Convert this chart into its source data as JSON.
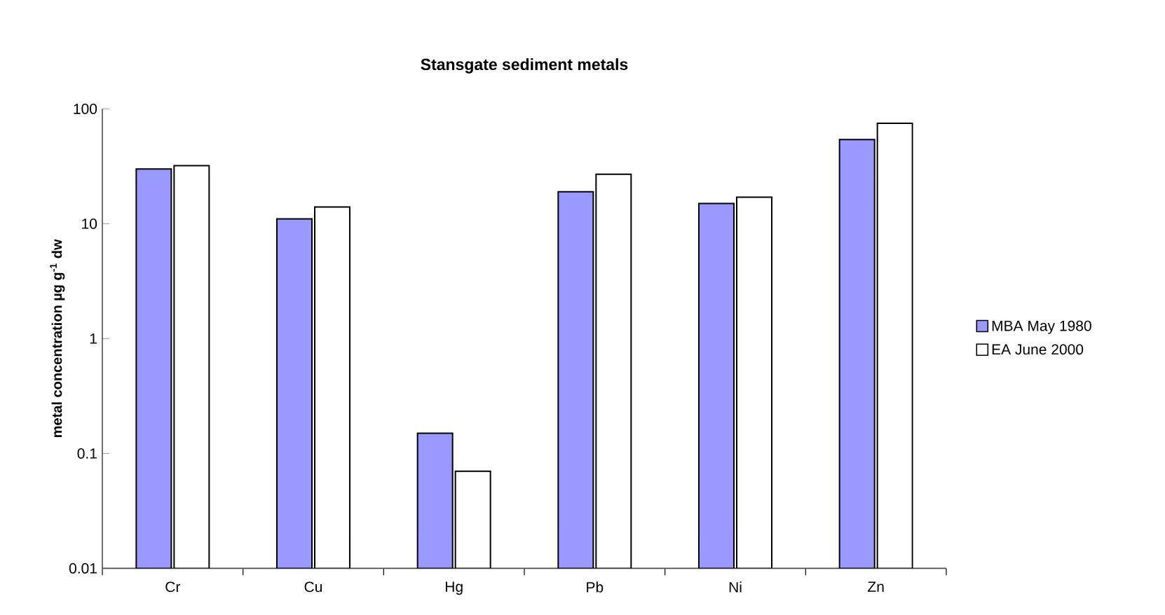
{
  "chart_data": {
    "type": "bar",
    "title": "Stansgate sediment metals",
    "ylabel": "metal concentration µg g$^{-1}$ dw",
    "categories": [
      "Cr",
      "Cu",
      "Hg",
      "Pb",
      "Ni",
      "Zn"
    ],
    "series": [
      {
        "name": "MBA May 1980",
        "color": "#9999ff",
        "values": [
          30,
          11,
          0.15,
          19,
          15,
          54
        ]
      },
      {
        "name": "EA June 2000",
        "color": "#ffffff",
        "values": [
          32,
          14,
          0.07,
          27,
          17,
          75
        ]
      }
    ],
    "log": "y",
    "ylim": [
      0.01,
      100
    ],
    "yticks": [
      0.01,
      0.1,
      1,
      10,
      100
    ],
    "legend": "right",
    "grid": false
  }
}
